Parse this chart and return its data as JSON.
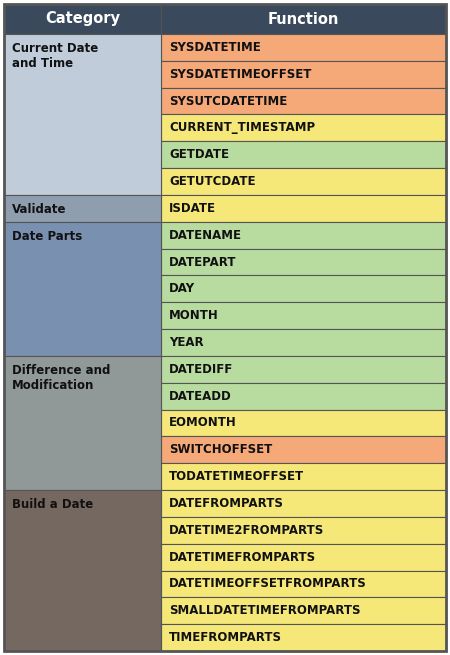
{
  "header": [
    "Category",
    "Function"
  ],
  "header_bg": "#3A4A5C",
  "header_fg": "#FFFFFF",
  "rows": [
    {
      "category": "Current Date\nand Time",
      "function": "SYSDATETIME",
      "cat_bg": "#C0CCDA",
      "func_bg": "#F5A878"
    },
    {
      "category": "",
      "function": "SYSDATETIMEOFFSET",
      "cat_bg": "#C0CCDA",
      "func_bg": "#F5A878"
    },
    {
      "category": "",
      "function": "SYSUTCDATETIME",
      "cat_bg": "#C0CCDA",
      "func_bg": "#F5A878"
    },
    {
      "category": "",
      "function": "CURRENT_TIMESTAMP",
      "cat_bg": "#C0CCDA",
      "func_bg": "#F5E878"
    },
    {
      "category": "",
      "function": "GETDATE",
      "cat_bg": "#C0CCDA",
      "func_bg": "#B8DCA0"
    },
    {
      "category": "",
      "function": "GETUTCDATE",
      "cat_bg": "#C0CCDA",
      "func_bg": "#F5E878"
    },
    {
      "category": "Validate",
      "function": "ISDATE",
      "cat_bg": "#8E9EAE",
      "func_bg": "#F5E878"
    },
    {
      "category": "Date Parts",
      "function": "DATENAME",
      "cat_bg": "#7A90B0",
      "func_bg": "#B8DCA0"
    },
    {
      "category": "",
      "function": "DATEPART",
      "cat_bg": "#7A90B0",
      "func_bg": "#B8DCA0"
    },
    {
      "category": "",
      "function": "DAY",
      "cat_bg": "#7A90B0",
      "func_bg": "#B8DCA0"
    },
    {
      "category": "",
      "function": "MONTH",
      "cat_bg": "#7A90B0",
      "func_bg": "#B8DCA0"
    },
    {
      "category": "",
      "function": "YEAR",
      "cat_bg": "#7A90B0",
      "func_bg": "#B8DCA0"
    },
    {
      "category": "Difference and\nModification",
      "function": "DATEDIFF",
      "cat_bg": "#909898",
      "func_bg": "#B8DCA0"
    },
    {
      "category": "",
      "function": "DATEADD",
      "cat_bg": "#909898",
      "func_bg": "#B8DCA0"
    },
    {
      "category": "",
      "function": "EOMONTH",
      "cat_bg": "#909898",
      "func_bg": "#F5E878"
    },
    {
      "category": "",
      "function": "SWITCHOFFSET",
      "cat_bg": "#909898",
      "func_bg": "#F5A878"
    },
    {
      "category": "",
      "function": "TODATETIMEOFFSET",
      "cat_bg": "#909898",
      "func_bg": "#F5E878"
    },
    {
      "category": "Build a Date",
      "function": "DATEFROMPARTS",
      "cat_bg": "#756860",
      "func_bg": "#F5E878"
    },
    {
      "category": "",
      "function": "DATETIME2FROMPARTS",
      "cat_bg": "#756860",
      "func_bg": "#F5E878"
    },
    {
      "category": "",
      "function": "DATETIMEFROMPARTS",
      "cat_bg": "#756860",
      "func_bg": "#F5E878"
    },
    {
      "category": "",
      "function": "DATETIMEOFFSETFROMPARTS",
      "cat_bg": "#756860",
      "func_bg": "#F5E878"
    },
    {
      "category": "",
      "function": "SMALLDATETIMEFROMPARTS",
      "cat_bg": "#756860",
      "func_bg": "#F5E878"
    },
    {
      "category": "",
      "function": "TIMEFROMPARTS",
      "cat_bg": "#756860",
      "func_bg": "#F5E878"
    }
  ],
  "col_split": 0.355,
  "cat_fontsize": 8.5,
  "func_fontsize": 8.5,
  "header_fontsize": 10.5,
  "border_color": "#555555",
  "border_lw": 0.8
}
